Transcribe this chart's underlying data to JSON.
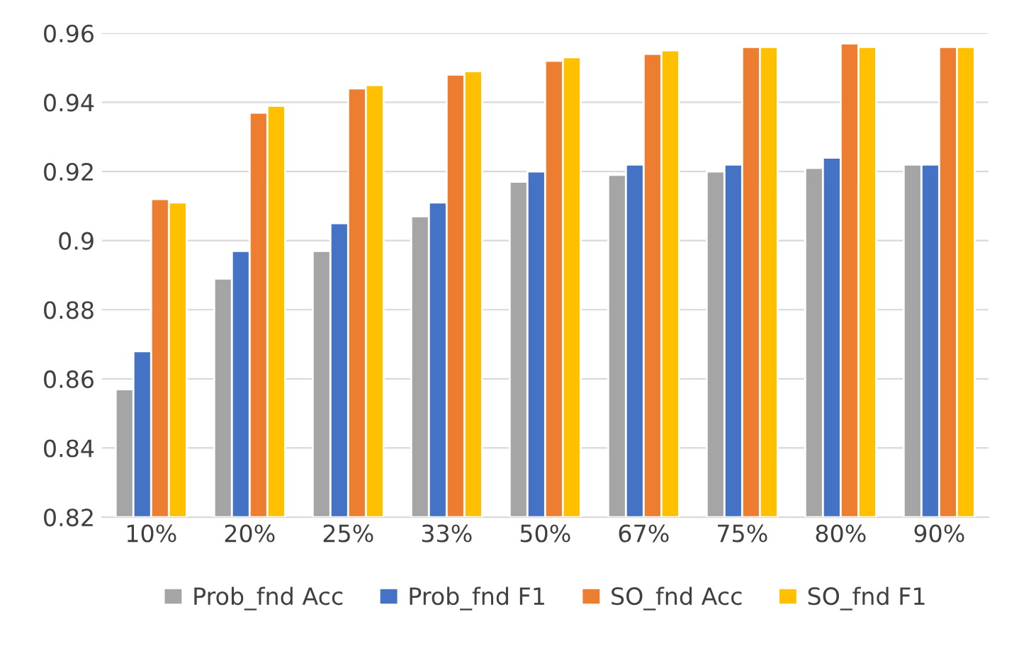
{
  "chart_data": {
    "type": "bar",
    "categories": [
      "10%",
      "20%",
      "25%",
      "33%",
      "50%",
      "67%",
      "75%",
      "80%",
      "90%"
    ],
    "series": [
      {
        "name": "Prob_fnd Acc",
        "color": "#a5a5a5",
        "values": [
          0.857,
          0.889,
          0.897,
          0.907,
          0.917,
          0.919,
          0.92,
          0.921,
          0.922
        ]
      },
      {
        "name": "Prob_fnd F1",
        "color": "#4472c4",
        "values": [
          0.868,
          0.897,
          0.905,
          0.911,
          0.92,
          0.922,
          0.922,
          0.924,
          0.922
        ]
      },
      {
        "name": "SO_fnd Acc",
        "color": "#ed7d31",
        "values": [
          0.912,
          0.937,
          0.944,
          0.948,
          0.952,
          0.954,
          0.956,
          0.957,
          0.956
        ]
      },
      {
        "name": "SO_fnd F1",
        "color": "#ffc000",
        "values": [
          0.911,
          0.939,
          0.945,
          0.949,
          0.953,
          0.955,
          0.956,
          0.956,
          0.956
        ]
      }
    ],
    "ylim": [
      0.82,
      0.96
    ],
    "yticks": [
      0.82,
      0.84,
      0.86,
      0.88,
      0.9,
      0.92,
      0.94,
      0.96
    ],
    "grid": "y",
    "legend": "bottom"
  }
}
